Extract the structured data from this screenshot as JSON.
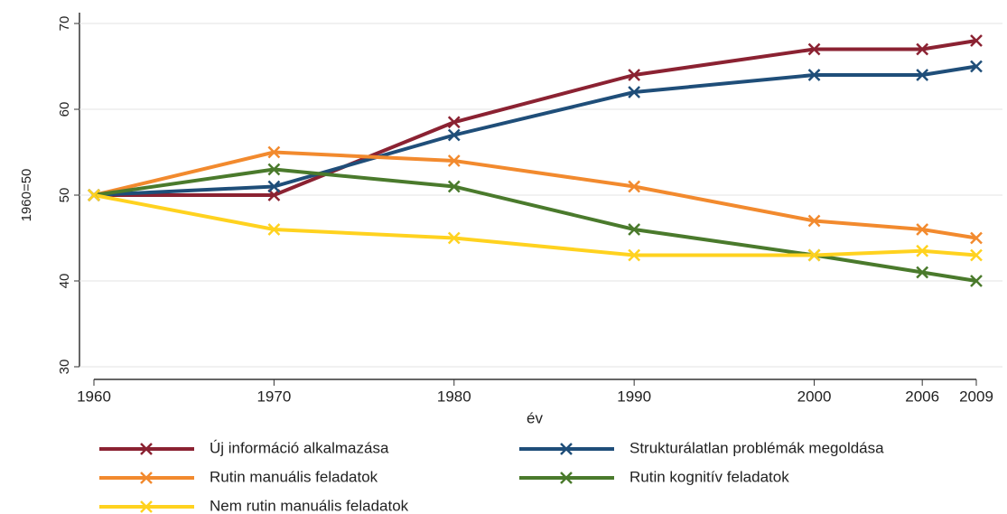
{
  "chart_data": {
    "type": "line",
    "ylabel": "1960=50",
    "xlabel": "év",
    "x": [
      1960,
      1970,
      1980,
      1990,
      2000,
      2006,
      2009
    ],
    "xlim": [
      1960,
      2009
    ],
    "xticks": [
      1960,
      1970,
      1980,
      1990,
      2000,
      2006,
      2009
    ],
    "ylim": [
      30,
      70
    ],
    "yticks": [
      30,
      40,
      50,
      60,
      70
    ],
    "grid": true,
    "series": [
      {
        "name": "Új információ alkalmazása",
        "color": "#8b2232",
        "values": [
          50,
          50,
          58.5,
          64,
          67,
          67,
          68
        ]
      },
      {
        "name": "Strukturálatlan problémák megoldása",
        "color": "#1f4e79",
        "values": [
          50,
          51,
          57,
          62,
          64,
          64,
          65
        ]
      },
      {
        "name": "Rutin manuális feladatok",
        "color": "#f28a2e",
        "values": [
          50,
          55,
          54,
          51,
          47,
          46,
          45
        ]
      },
      {
        "name": "Rutin kognitív feladatok",
        "color": "#4a7a2c",
        "values": [
          50,
          53,
          51,
          46,
          43,
          41,
          40
        ]
      },
      {
        "name": "Nem rutin manuális feladatok",
        "color": "#ffd21f",
        "values": [
          50,
          46,
          45,
          43,
          43,
          43.5,
          43
        ]
      }
    ]
  }
}
